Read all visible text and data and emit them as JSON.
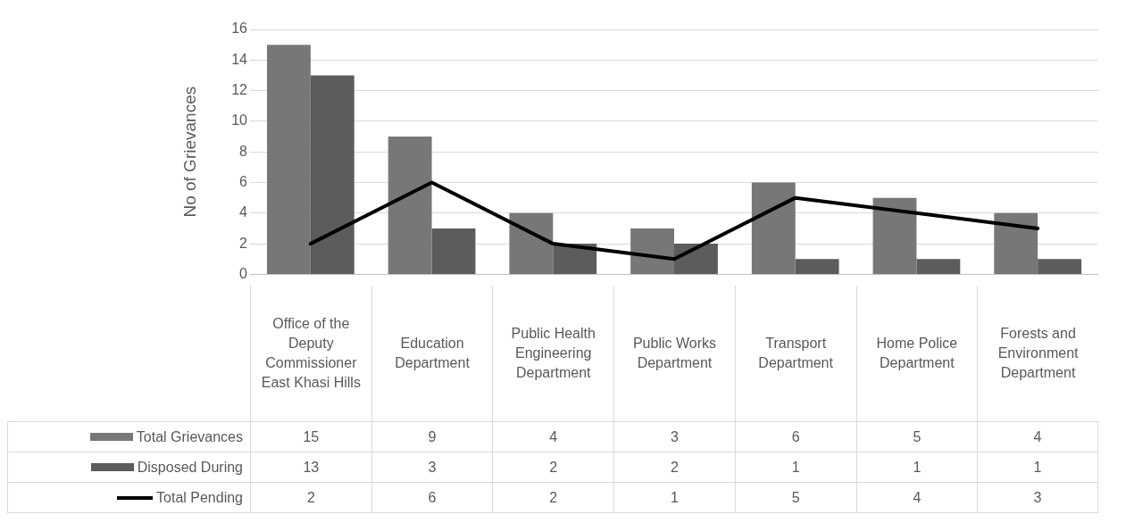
{
  "chart_data": {
    "type": "bar",
    "ylabel": "No of Grievances",
    "categories": [
      "Office of the Deputy Commissioner East Khasi Hills",
      "Education Department",
      "Public Health Engineering Department",
      "Public Works Department",
      "Transport Department",
      "Home Police Department",
      "Forests and Environment Department"
    ],
    "series": [
      {
        "name": "Total Grievances",
        "color": "#777777",
        "values": [
          15,
          9,
          4,
          3,
          6,
          5,
          4
        ]
      },
      {
        "name": "Disposed During",
        "color": "#5c5c5c",
        "values": [
          13,
          3,
          2,
          2,
          1,
          1,
          1
        ]
      },
      {
        "name": "Total Pending",
        "type": "line",
        "color": "#000000",
        "values": [
          2,
          6,
          2,
          1,
          5,
          4,
          3
        ]
      }
    ],
    "ylim": [
      0,
      16
    ],
    "yticks": [
      0,
      2,
      4,
      6,
      8,
      10,
      12,
      14,
      16
    ],
    "grid": "y",
    "legend": "bottom",
    "data_labels": true,
    "marker": "none",
    "line_style": "solid"
  }
}
